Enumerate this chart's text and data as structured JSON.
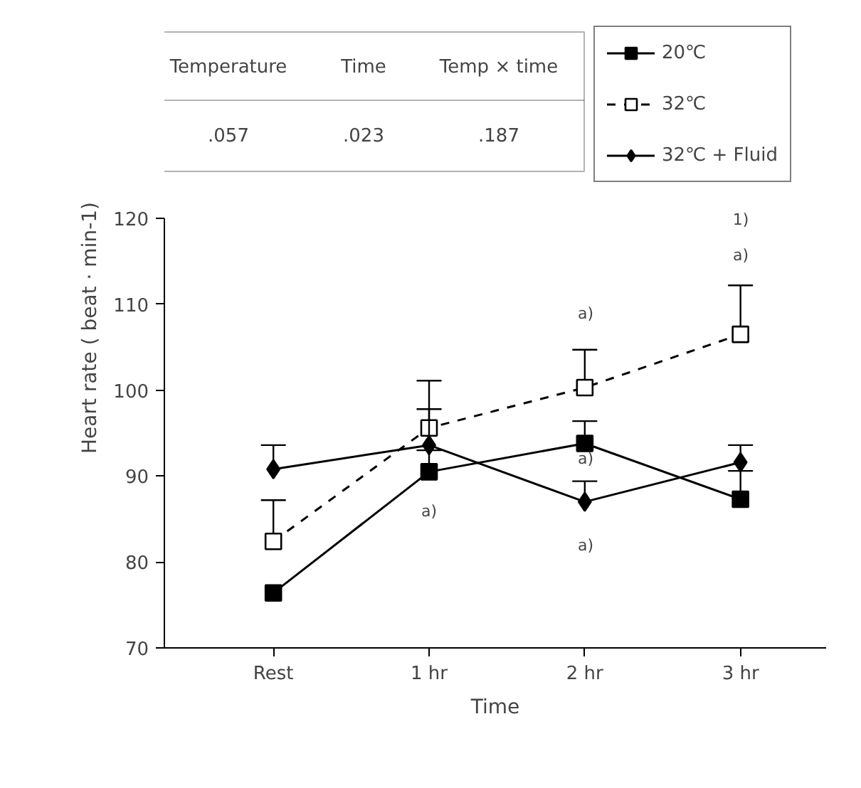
{
  "chart_data": {
    "type": "line",
    "xlabel": "Time",
    "ylabel": "Heart rate ( beat · min-1)",
    "categories": [
      "Rest",
      "1 hr",
      "2 hr",
      "3 hr"
    ],
    "ylim": [
      70,
      120
    ],
    "yticks": [
      70,
      80,
      90,
      100,
      110,
      120
    ],
    "legend": "top right",
    "grid": false,
    "series": [
      {
        "name": "20℃",
        "color": "#000000",
        "marker": "square",
        "line_style": "solid",
        "values": [
          76.4,
          90.5,
          93.8,
          87.3
        ],
        "errors": [
          null,
          [
            90.5,
            93.0
          ],
          [
            93.8,
            96.4
          ],
          [
            87.3,
            90.6
          ]
        ]
      },
      {
        "name": "32℃",
        "color": "#000000",
        "marker": "square",
        "line_style": "dashed",
        "values": [
          82.4,
          95.6,
          100.3,
          106.5
        ],
        "errors": [
          [
            82.4,
            87.2
          ],
          [
            95.6,
            101.1
          ],
          [
            100.3,
            104.7
          ],
          [
            106.5,
            112.2
          ]
        ]
      },
      {
        "name": "32℃ + Fluid",
        "color": "#000000",
        "marker": "diamond",
        "line_style": "solid",
        "values": [
          90.8,
          93.6,
          87.0,
          91.6
        ],
        "errors": [
          [
            90.8,
            93.6
          ],
          [
            93.6,
            97.8
          ],
          [
            87.0,
            89.4
          ],
          [
            91.6,
            93.6
          ]
        ]
      }
    ],
    "annotations": [
      "Temperature",
      "Time",
      "Temp × time",
      ".057",
      ".023",
      ".187",
      "a)",
      "a)",
      "a)",
      "a)",
      "a)",
      "1)"
    ]
  }
}
